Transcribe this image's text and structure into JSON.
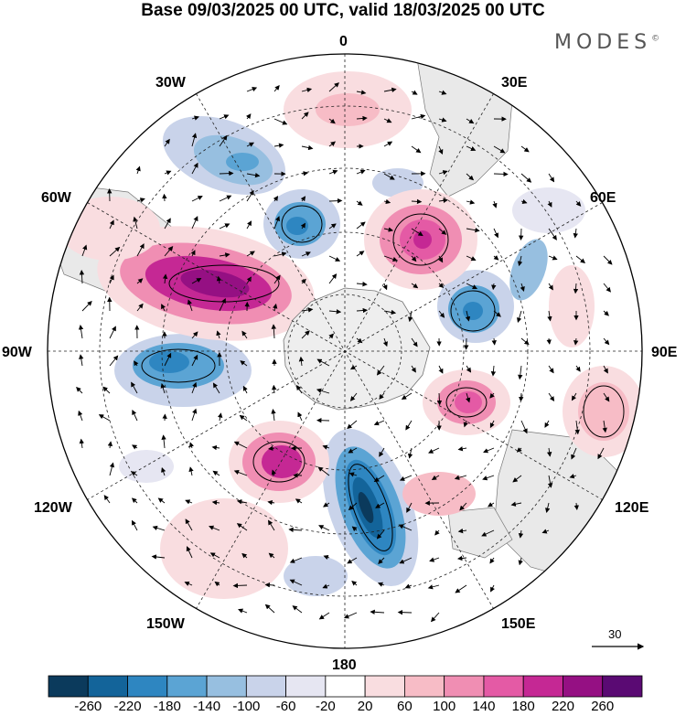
{
  "title": "Base 09/03/2025 00 UTC, valid 18/03/2025 00 UTC",
  "logo": "MODES",
  "logo_mark": "©",
  "longitude_labels": {
    "lon_0": "0",
    "lon_30e": "30E",
    "lon_60e": "60E",
    "lon_90e": "90E",
    "lon_120e": "120E",
    "lon_150e": "150E",
    "lon_180": "180",
    "lon_150w": "150W",
    "lon_120w": "120W",
    "lon_90w": "90W",
    "lon_60w": "60W",
    "lon_30w": "30W"
  },
  "reference_vector": {
    "label": "30"
  },
  "colorbar": {
    "colors": [
      "#0b3a5c",
      "#13649a",
      "#2e86c1",
      "#5ba4d4",
      "#97bfe0",
      "#c9d3ea",
      "#e6e6f2",
      "#ffffff",
      "#f9dde0",
      "#f7bcc6",
      "#f08eb3",
      "#e45aa5",
      "#c52894",
      "#951083",
      "#5a0a73"
    ],
    "labels": [
      "-260",
      "-220",
      "-180",
      "-140",
      "-100",
      "-60",
      "-20",
      "20",
      "60",
      "100",
      "140",
      "180",
      "220",
      "260"
    ]
  }
}
